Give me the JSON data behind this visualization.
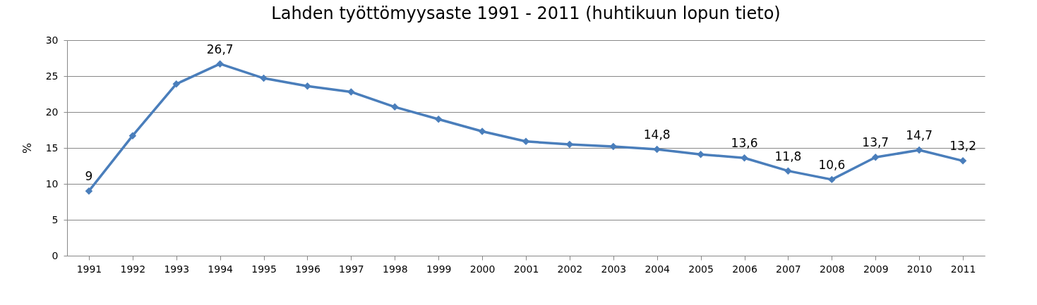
{
  "chart_data": {
    "type": "line",
    "title": "Lahden työttömyysaste 1991 - 2011 (huhtikuun lopun tieto)",
    "ylabel": "%",
    "categories": [
      "1991",
      "1992",
      "1993",
      "1994",
      "1995",
      "1996",
      "1997",
      "1998",
      "1999",
      "2000",
      "2001",
      "2002",
      "2003",
      "2004",
      "2005",
      "2006",
      "2007",
      "2008",
      "2009",
      "2010",
      "2011"
    ],
    "series": [
      {
        "color": "#4a7ebb",
        "values": [
          9,
          16.7,
          23.9,
          26.7,
          24.7,
          23.6,
          22.8,
          20.7,
          19.0,
          17.3,
          15.9,
          15.5,
          15.2,
          14.8,
          14.1,
          13.6,
          11.8,
          10.6,
          13.7,
          14.7,
          13.2
        ],
        "value_labels": [
          "9",
          null,
          null,
          "26,7",
          null,
          null,
          null,
          null,
          null,
          null,
          null,
          null,
          null,
          "14,8",
          null,
          "13,6",
          "11,8",
          "10,6",
          "13,7",
          "14,7",
          "13,2"
        ]
      }
    ],
    "ylim": [
      0,
      30
    ],
    "yticks": [
      0,
      5,
      10,
      15,
      20,
      25,
      30
    ],
    "grid": "y",
    "marker": "diamond",
    "line_style": "solid",
    "legend": false
  }
}
